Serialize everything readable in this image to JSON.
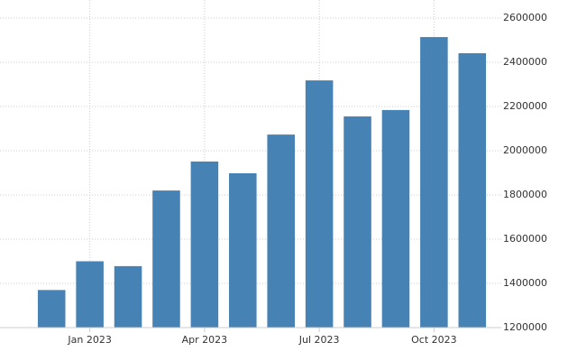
{
  "chart_data": {
    "type": "bar",
    "categories": [
      null,
      "Jan 2023",
      null,
      null,
      "Apr 2023",
      null,
      null,
      "Jul 2023",
      null,
      null,
      "Oct 2023",
      null
    ],
    "values": [
      1370000,
      1500000,
      1478000,
      1820000,
      1951000,
      1898000,
      2073000,
      2318000,
      2155000,
      2184000,
      2514000,
      2441000
    ],
    "color": "#4682b4",
    "ylim": [
      1200000,
      2600000
    ],
    "yticks": [
      1200000,
      1400000,
      1600000,
      1800000,
      2000000,
      2200000,
      2400000,
      2600000
    ],
    "grid": true
  }
}
